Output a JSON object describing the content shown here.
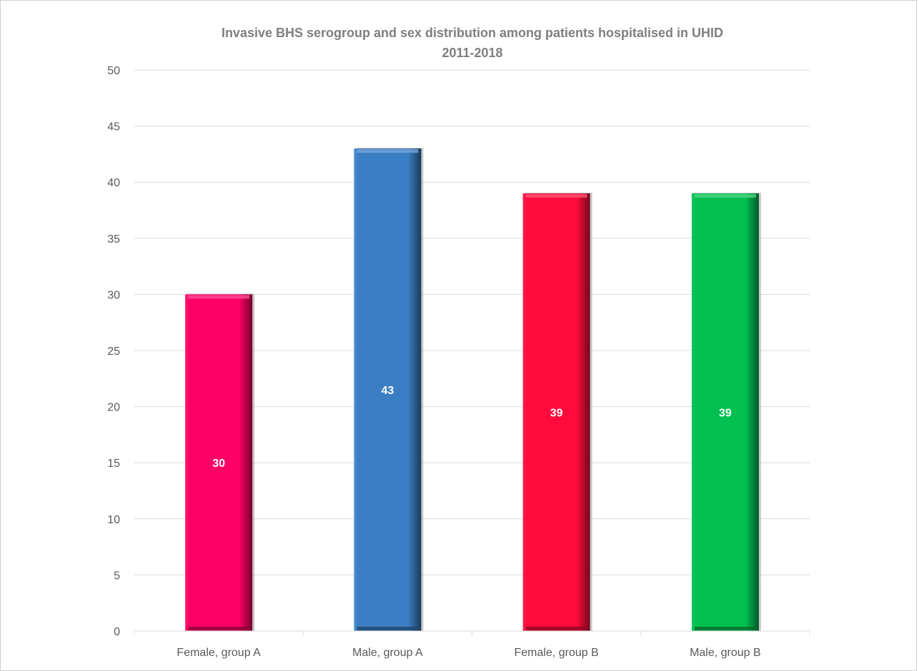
{
  "chart_data": {
    "type": "bar",
    "title": "Invasive BHS serogroup and sex distribution among patients hospitalised in UHID",
    "subtitle": "2011-2018",
    "xlabel": "",
    "ylabel": "",
    "categories": [
      "Female, group A",
      "Male, group A",
      "Female, group B",
      "Male, group B"
    ],
    "values": [
      30,
      43,
      39,
      39
    ],
    "data_labels": [
      "30",
      "43",
      "39",
      "39"
    ],
    "colors": [
      "#FF0066",
      "#3A7FC4",
      "#FF0A3C",
      "#00C050"
    ],
    "ylim": [
      0,
      50
    ],
    "yticks": [
      0,
      5,
      10,
      15,
      20,
      25,
      30,
      35,
      40,
      45,
      50
    ],
    "grid": true,
    "legend": "none"
  }
}
